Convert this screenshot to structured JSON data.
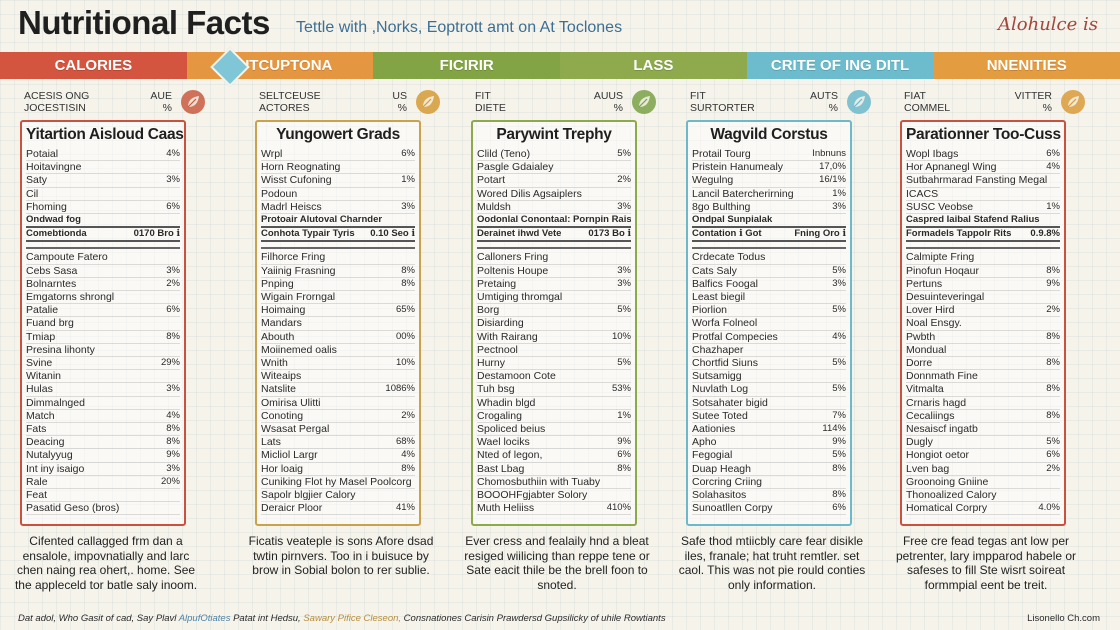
{
  "header": {
    "title": "Nutritional Facts",
    "subtitle": "Tettle with ,Norks, Eoptrott amt on At Toclones",
    "brand": "Alohulce is"
  },
  "banner": {
    "segments": [
      {
        "label": "CALORIES",
        "color": "#d4553f"
      },
      {
        "label": "CUTCUPTONA",
        "color": "#e59640"
      },
      {
        "label": "FICIRIR",
        "color": "#83a444"
      },
      {
        "label": "LASS",
        "color": "#8eaa4d"
      },
      {
        "label": "CRITE OF ING DITL",
        "color": "#6cbccd"
      },
      {
        "label": "NNENITIES",
        "color": "#e49c40"
      }
    ]
  },
  "columns": [
    {
      "head_left": [
        "ACESIS ONG",
        "JOCESTISIN"
      ],
      "head_right": [
        "AUE",
        "%"
      ],
      "icon_color": "#c95a40",
      "icon_name": "leaf-icon",
      "border_color": "#c8523f",
      "title": "Yitartion Aisloud Caas",
      "rows": [
        {
          "label": "Potaial",
          "value": "4%"
        },
        {
          "label": "Hoitavingne",
          "value": ""
        },
        {
          "label": "Saty",
          "value": "3%"
        },
        {
          "label": "Cil",
          "value": ""
        },
        {
          "label": "Fhoming",
          "value": "6%"
        },
        {
          "label": "Ondwad fog",
          "value": "",
          "bold": true
        },
        {
          "label": "Comebtionda",
          "value": "0170 Bro ℹ",
          "bold": true
        },
        {
          "label": "Campoute Fatero",
          "value": ""
        },
        {
          "label": "Cebs Sasa",
          "value": "3%"
        },
        {
          "label": "Bolnarntes",
          "value": "2%"
        },
        {
          "label": "Emgatorns shrongl",
          "value": ""
        },
        {
          "label": "Patalie",
          "value": "6%"
        },
        {
          "label": "Fuand brg",
          "value": ""
        },
        {
          "label": "Tmiap",
          "value": "8%"
        },
        {
          "label": "Presina lihonty",
          "value": ""
        },
        {
          "label": "Svine",
          "value": "29%"
        },
        {
          "label": "Witanin",
          "value": ""
        },
        {
          "label": "Hulas",
          "value": "3%"
        },
        {
          "label": "Dimmalnged",
          "value": ""
        },
        {
          "label": "Match",
          "value": "4%"
        },
        {
          "label": "Fats",
          "value": "8%"
        },
        {
          "label": "Deacing",
          "value": "8%"
        },
        {
          "label": "Nutalyyug",
          "value": "9%"
        },
        {
          "label": "Int iny isaigo",
          "value": "3%"
        },
        {
          "label": "Rale",
          "value": "20%"
        },
        {
          "label": "Feat",
          "value": ""
        },
        {
          "label": "Pasatid Geso (bros)",
          "value": ""
        }
      ],
      "footer": "Cifented callagged frm dan a ensalole, impovnatially and larc chen naing rea ohert,. home. See the appleceld tor batle saly inoom."
    },
    {
      "head_left": [
        "SELTCEUSE",
        "ACTORES"
      ],
      "head_right": [
        "US",
        "%"
      ],
      "icon_color": "#d59a35",
      "icon_name": "leaf-icon",
      "border_color": "#c9a24b",
      "title": "Yungowert Grads",
      "rows": [
        {
          "label": "Wrpl",
          "value": "6%"
        },
        {
          "label": "Horn Reognating",
          "value": ""
        },
        {
          "label": "Wisst Cufoning",
          "value": "1%"
        },
        {
          "label": "Podoun",
          "value": ""
        },
        {
          "label": "Madrl Heiscs",
          "value": "3%"
        },
        {
          "label": "Protoair Alutoval Charnder",
          "value": "",
          "bold": true
        },
        {
          "label": "Conhota Typair Tyris",
          "value": "0.10 Seo ℹ",
          "bold": true
        },
        {
          "label": "Filhorce Fring",
          "value": ""
        },
        {
          "label": "Yaiinig Frasning",
          "value": "8%"
        },
        {
          "label": "Pnping",
          "value": "8%"
        },
        {
          "label": "Wigain Frorngal",
          "value": ""
        },
        {
          "label": "Hoimaing",
          "value": "65%"
        },
        {
          "label": "Mandars",
          "value": ""
        },
        {
          "label": "Abouth",
          "value": "00%"
        },
        {
          "label": "Moiinemed oalis",
          "value": ""
        },
        {
          "label": "Wnith",
          "value": "10%"
        },
        {
          "label": "Witeaips",
          "value": ""
        },
        {
          "label": "Natslite",
          "value": "1086%"
        },
        {
          "label": "Omirisa Ulitti",
          "value": ""
        },
        {
          "label": "Conoting",
          "value": "2%"
        },
        {
          "label": "Wsasat Pergal",
          "value": ""
        },
        {
          "label": "Lats",
          "value": "68%"
        },
        {
          "label": "Micliol Largr",
          "value": "4%"
        },
        {
          "label": "Hor loaig",
          "value": "8%"
        },
        {
          "label": "Cuniking Flot hy Masel Poolcorg",
          "value": ""
        },
        {
          "label": "Sapolr blgjier Calory",
          "value": ""
        },
        {
          "label": "Deraicr Ploor",
          "value": "41%"
        }
      ],
      "footer": "Ficatis veateple is sons Afore dsad twtin pirnvers. Too in i buisuce by brow in Sobial bolon to rer sublie."
    },
    {
      "head_left": [
        "FIT",
        "DIETE"
      ],
      "head_right": [
        "AUUS",
        "%"
      ],
      "icon_color": "#7aa047",
      "icon_name": "leaf-icon",
      "border_color": "#8caa4b",
      "title": "Parywint Trephy",
      "rows": [
        {
          "label": "Clild (Teno)",
          "value": "5%"
        },
        {
          "label": "Pasgle Gdaialey",
          "value": ""
        },
        {
          "label": "Potart",
          "value": "2%"
        },
        {
          "label": "Wored Dilis Agsaiplers",
          "value": ""
        },
        {
          "label": "Muldsh",
          "value": "3%"
        },
        {
          "label": "Oodonlal Conontaal: Pornpin Raiss",
          "value": "",
          "bold": true
        },
        {
          "label": "Derainet ihwd Vete",
          "value": "0173 Bo ℹ",
          "bold": true
        },
        {
          "label": "Calloners Fring",
          "value": ""
        },
        {
          "label": "Poltenis Houpe",
          "value": "3%"
        },
        {
          "label": "Pretaing",
          "value": "3%"
        },
        {
          "label": "Umtiging thromgal",
          "value": ""
        },
        {
          "label": "Borg",
          "value": "5%"
        },
        {
          "label": "Disiarding",
          "value": ""
        },
        {
          "label": "With Rairang",
          "value": "10%"
        },
        {
          "label": "Pectnool",
          "value": ""
        },
        {
          "label": "Hurny",
          "value": "5%"
        },
        {
          "label": "Destamoon Cote",
          "value": ""
        },
        {
          "label": "Tuh bsg",
          "value": "53%"
        },
        {
          "label": "Whadin blgd",
          "value": ""
        },
        {
          "label": "Crogaling",
          "value": "1%"
        },
        {
          "label": "Spoliced beius",
          "value": ""
        },
        {
          "label": "Wael lociks",
          "value": "9%"
        },
        {
          "label": "Nted of legon,",
          "value": "6%"
        },
        {
          "label": "Bast Lbag",
          "value": "8%"
        },
        {
          "label": "Chomosbuthiin with Tuaby",
          "value": ""
        },
        {
          "label": "BOOOHFgjabter Solory",
          "value": ""
        },
        {
          "label": "Muth Heliiss",
          "value": "410%"
        }
      ],
      "footer": "Ever cress and fealaily hnd a bleat resiged wiilicing than reppe tene or Sate eacit thile be the brell foon to snoted."
    },
    {
      "head_left": [
        "FIT",
        "SURTORTER"
      ],
      "head_right": [
        "AUTS",
        "%"
      ],
      "icon_color": "#6cb9cc",
      "icon_name": "leaf-icon",
      "border_color": "#6cb9cc",
      "title": "Wagvild Corstus",
      "rows": [
        {
          "label": "Protail Tourg",
          "value": "Inbnuns"
        },
        {
          "label": "Pristein Hanumealy",
          "value": "17,0%"
        },
        {
          "label": "Wegulng",
          "value": "16/1%"
        },
        {
          "label": "Lancil Batercherirning",
          "value": "1%"
        },
        {
          "label": "8go Bulthing",
          "value": "3%"
        },
        {
          "label": "Ondpal Sunpialak",
          "value": "",
          "bold": true
        },
        {
          "label": "Contation ℹ Got",
          "value": "Fning  Oro ℹ",
          "bold": true
        },
        {
          "label": "Crdecate Todus",
          "value": ""
        },
        {
          "label": "Cats Saly",
          "value": "5%"
        },
        {
          "label": "Balfics Foogal",
          "value": "3%"
        },
        {
          "label": "Least biegil",
          "value": ""
        },
        {
          "label": "Piorlion",
          "value": "5%"
        },
        {
          "label": "Worfa Folneol",
          "value": ""
        },
        {
          "label": "Protfal Compecies",
          "value": "4%"
        },
        {
          "label": "Chazhaper",
          "value": ""
        },
        {
          "label": "Chortfid Siuns",
          "value": "5%"
        },
        {
          "label": "Sutsamigg",
          "value": ""
        },
        {
          "label": "Nuvlath Log",
          "value": "5%"
        },
        {
          "label": "Sotsahater bigid",
          "value": ""
        },
        {
          "label": "Sutee Toted",
          "value": "7%"
        },
        {
          "label": "Aationies",
          "value": "114%"
        },
        {
          "label": "Apho",
          "value": "9%"
        },
        {
          "label": "Fegogial",
          "value": "5%"
        },
        {
          "label": "Duap Heagh",
          "value": "8%"
        },
        {
          "label": "Corcring Criing",
          "value": ""
        },
        {
          "label": "Solahasitos",
          "value": "8%"
        },
        {
          "label": "Sunoatllen Corpy",
          "value": "6%"
        }
      ],
      "footer": "Safe thod mtiicbly care fear disikle iles, franale; hat truht remtler. set caol. This was not pie rould conties only information."
    },
    {
      "head_left": [
        "FIAT",
        "COMMEL"
      ],
      "head_right": [
        "VITTER",
        "%"
      ],
      "icon_color": "#d99a3a",
      "icon_name": "leaf-icon",
      "border_color": "#c8523f",
      "title": "Parationner Too-Cuss",
      "rows": [
        {
          "label": "Wopl Ibags",
          "value": "6%"
        },
        {
          "label": "Hor Apnanegl Wing",
          "value": "4%"
        },
        {
          "label": "Sutbahrmarad Fansting Megal",
          "value": ""
        },
        {
          "label": "ICACS",
          "value": ""
        },
        {
          "label": "SUSC Veobse",
          "value": "1%"
        },
        {
          "label": "Caspred Iaibal Stafend Ralius",
          "value": "",
          "bold": true
        },
        {
          "label": "Formadels Tappolr Rits",
          "value": "0.9.8%",
          "bold": true
        },
        {
          "label": "Calmipte Fring",
          "value": ""
        },
        {
          "label": "Pinofun Hoqaur",
          "value": "8%"
        },
        {
          "label": "Pertuns",
          "value": "9%"
        },
        {
          "label": "Desuinteveringal",
          "value": ""
        },
        {
          "label": "Lover Hird",
          "value": "2%"
        },
        {
          "label": "Noal Ensgy.",
          "value": ""
        },
        {
          "label": "Pwbth",
          "value": "8%"
        },
        {
          "label": "Mondual",
          "value": ""
        },
        {
          "label": "Dorre",
          "value": "8%"
        },
        {
          "label": "Donnmath Fine",
          "value": ""
        },
        {
          "label": "Vitmalta",
          "value": "8%"
        },
        {
          "label": "Crnaris hagd",
          "value": ""
        },
        {
          "label": "Cecaliings",
          "value": "8%"
        },
        {
          "label": "Nesaiscf ingatb",
          "value": ""
        },
        {
          "label": "Dugly",
          "value": "5%"
        },
        {
          "label": "Hongiot oetor",
          "value": "6%"
        },
        {
          "label": "Lven bag",
          "value": "2%"
        },
        {
          "label": "Groonoing Gniine",
          "value": ""
        },
        {
          "label": "Thonoalized Calory",
          "value": ""
        },
        {
          "label": "Homatical Corpry",
          "value": "4.0%"
        }
      ],
      "footer": "Free cre fead tegas ant low per petrenter, lary impparod habele or safeses to fill Ste wisrt soireat formmpial eent be treit."
    }
  ],
  "bottom": {
    "left_1": "Dat adol, Who Gasit of cad, Say Plavl",
    "left_link1": "AlpufOtiates",
    "left_2": "Patat int Hedsu,",
    "left_link2": "Sawary Pifice Cleseon,",
    "left_3": "Consnationes Carisin Prawdersd Gupsilicky of uhile Rowtiants",
    "right": "Lisonello Ch.com"
  }
}
